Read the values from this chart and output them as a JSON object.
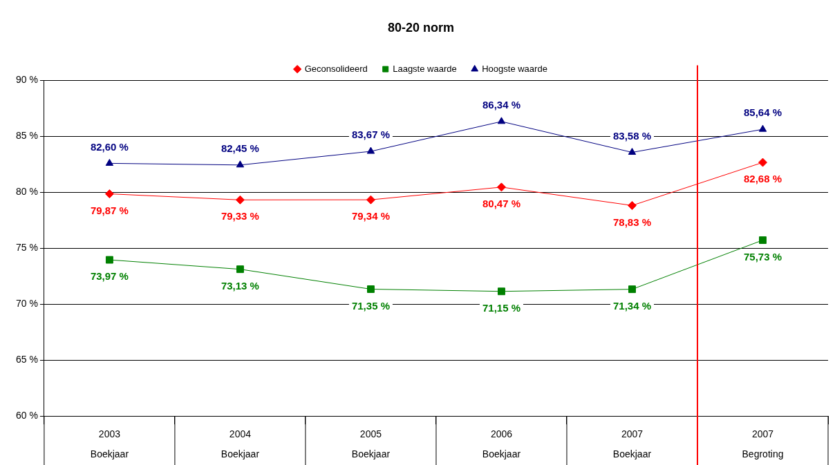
{
  "chart_data": {
    "type": "line",
    "title": "80-20 norm",
    "categories": [
      "2003\nBoekjaar",
      "2004\nBoekjaar",
      "2005\nBoekjaar",
      "2006\nBoekjaar",
      "2007\nBoekjaar",
      "2007\nBegroting"
    ],
    "series": [
      {
        "name": "Geconsolideerd",
        "color": "#ff0000",
        "marker": "diamond",
        "values": [
          79.87,
          79.33,
          79.34,
          80.47,
          78.83,
          82.68
        ],
        "value_labels": [
          "79,87 %",
          "79,33 %",
          "79,34 %",
          "80,47 %",
          "78,83 %",
          "82,68 %"
        ]
      },
      {
        "name": "Laagste waarde",
        "color": "#008000",
        "marker": "square",
        "values": [
          73.97,
          73.13,
          71.35,
          71.15,
          71.34,
          75.73
        ],
        "value_labels": [
          "73,97 %",
          "73,13 %",
          "71,35 %",
          "71,15 %",
          "71,34 %",
          "75,73 %"
        ]
      },
      {
        "name": "Hoogste waarde",
        "color": "#000080",
        "marker": "triangle",
        "values": [
          82.6,
          82.45,
          83.67,
          86.34,
          83.58,
          85.64
        ],
        "value_labels": [
          "82,60 %",
          "82,45 %",
          "83,67 %",
          "86,34 %",
          "83,58 %",
          "85,64 %"
        ]
      }
    ],
    "ylim": [
      60,
      90
    ],
    "yticks": [
      {
        "value": 60,
        "label": "60 %"
      },
      {
        "value": 65,
        "label": "65 %"
      },
      {
        "value": 70,
        "label": "70 %"
      },
      {
        "value": 75,
        "label": "75 %"
      },
      {
        "value": 80,
        "label": "80 %"
      },
      {
        "value": 85,
        "label": "85 %"
      },
      {
        "value": 90,
        "label": "90 %"
      }
    ],
    "ref_lines": [
      {
        "axis": "x",
        "value": "2007\nBegroting",
        "color": "#ff0000"
      }
    ],
    "grid": "y",
    "legend": "top",
    "line_style": "solid"
  }
}
